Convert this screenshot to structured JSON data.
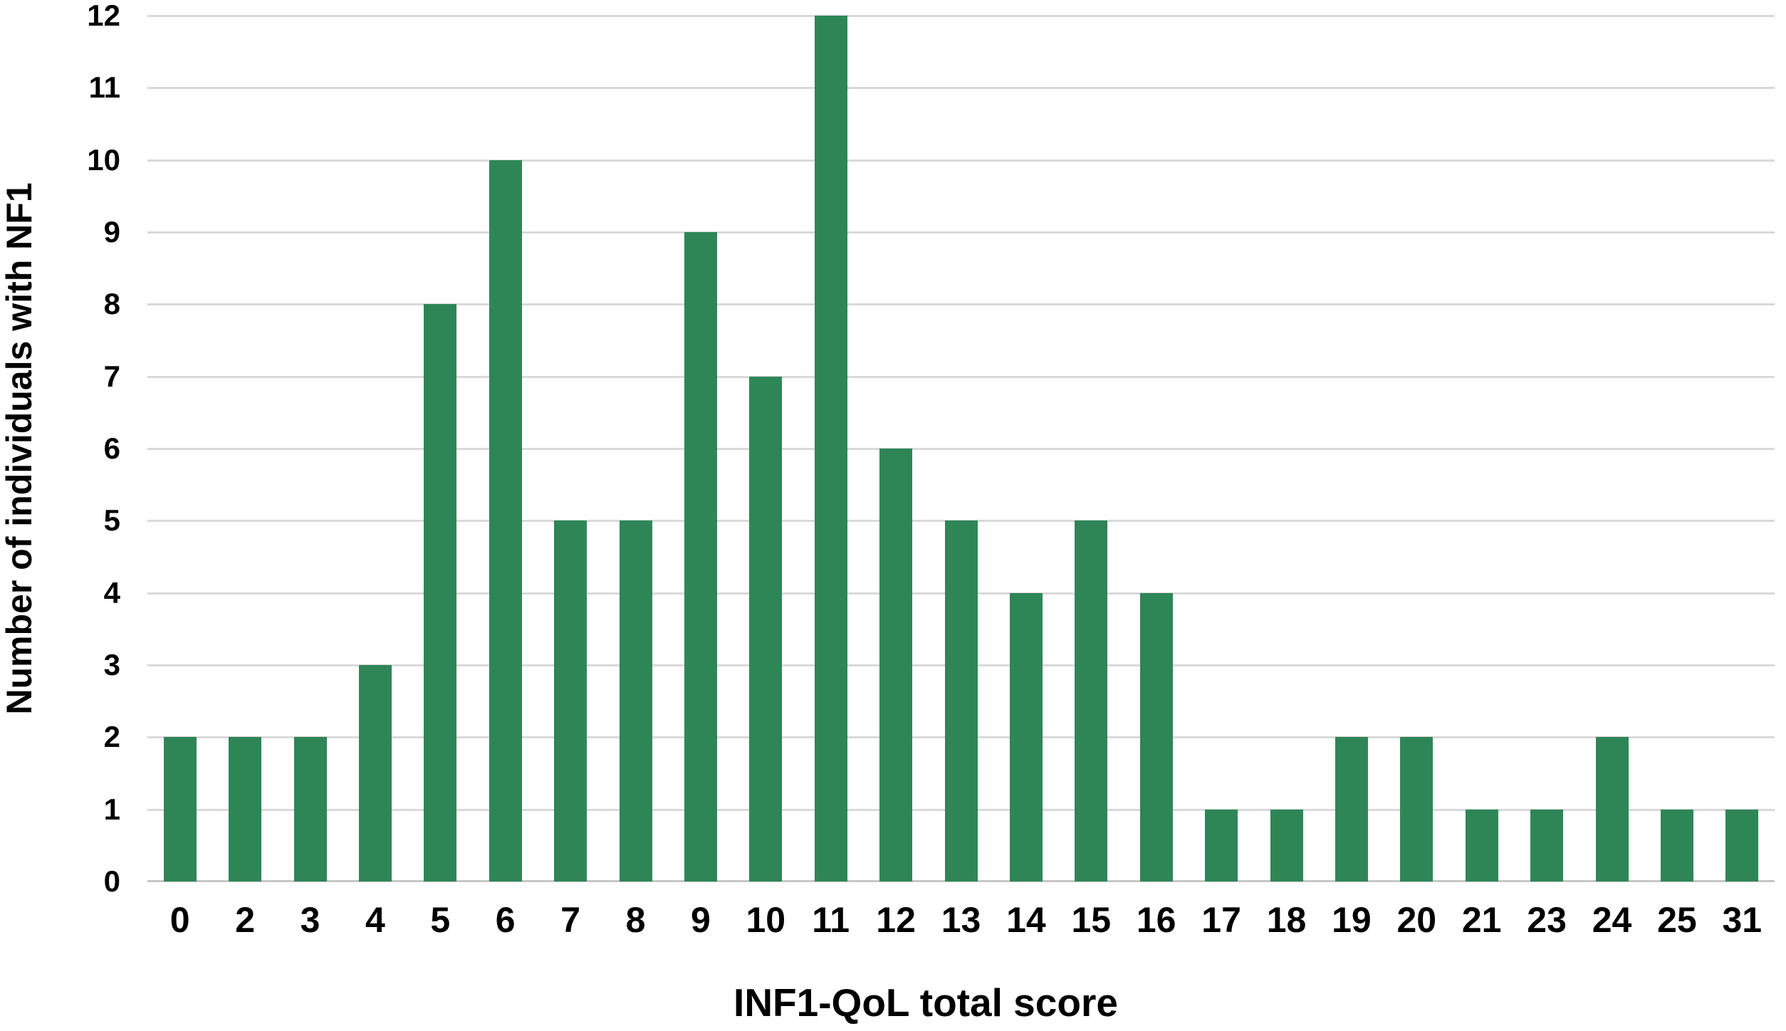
{
  "chart_data": {
    "type": "bar",
    "title": "",
    "xlabel": "INF1-QoL total score",
    "ylabel": "Number of individuals with NF1",
    "categories": [
      "0",
      "2",
      "3",
      "4",
      "5",
      "6",
      "7",
      "8",
      "9",
      "10",
      "11",
      "12",
      "13",
      "14",
      "15",
      "16",
      "17",
      "18",
      "19",
      "20",
      "21",
      "23",
      "24",
      "25",
      "31"
    ],
    "values": [
      2,
      2,
      2,
      3,
      8,
      10,
      5,
      5,
      9,
      7,
      12,
      6,
      5,
      4,
      5,
      4,
      1,
      1,
      2,
      2,
      1,
      1,
      2,
      1,
      1
    ],
    "ylim": [
      0,
      12
    ],
    "y_ticks": [
      0,
      1,
      2,
      3,
      4,
      5,
      6,
      7,
      8,
      9,
      10,
      11,
      12
    ],
    "grid": "horizontal",
    "legend": "none",
    "colors": {
      "bar": "#2e8657",
      "gridline": "#d9d9d9",
      "axis_line": "#c6c6c6",
      "text": "#000000",
      "background": "#ffffff"
    }
  }
}
